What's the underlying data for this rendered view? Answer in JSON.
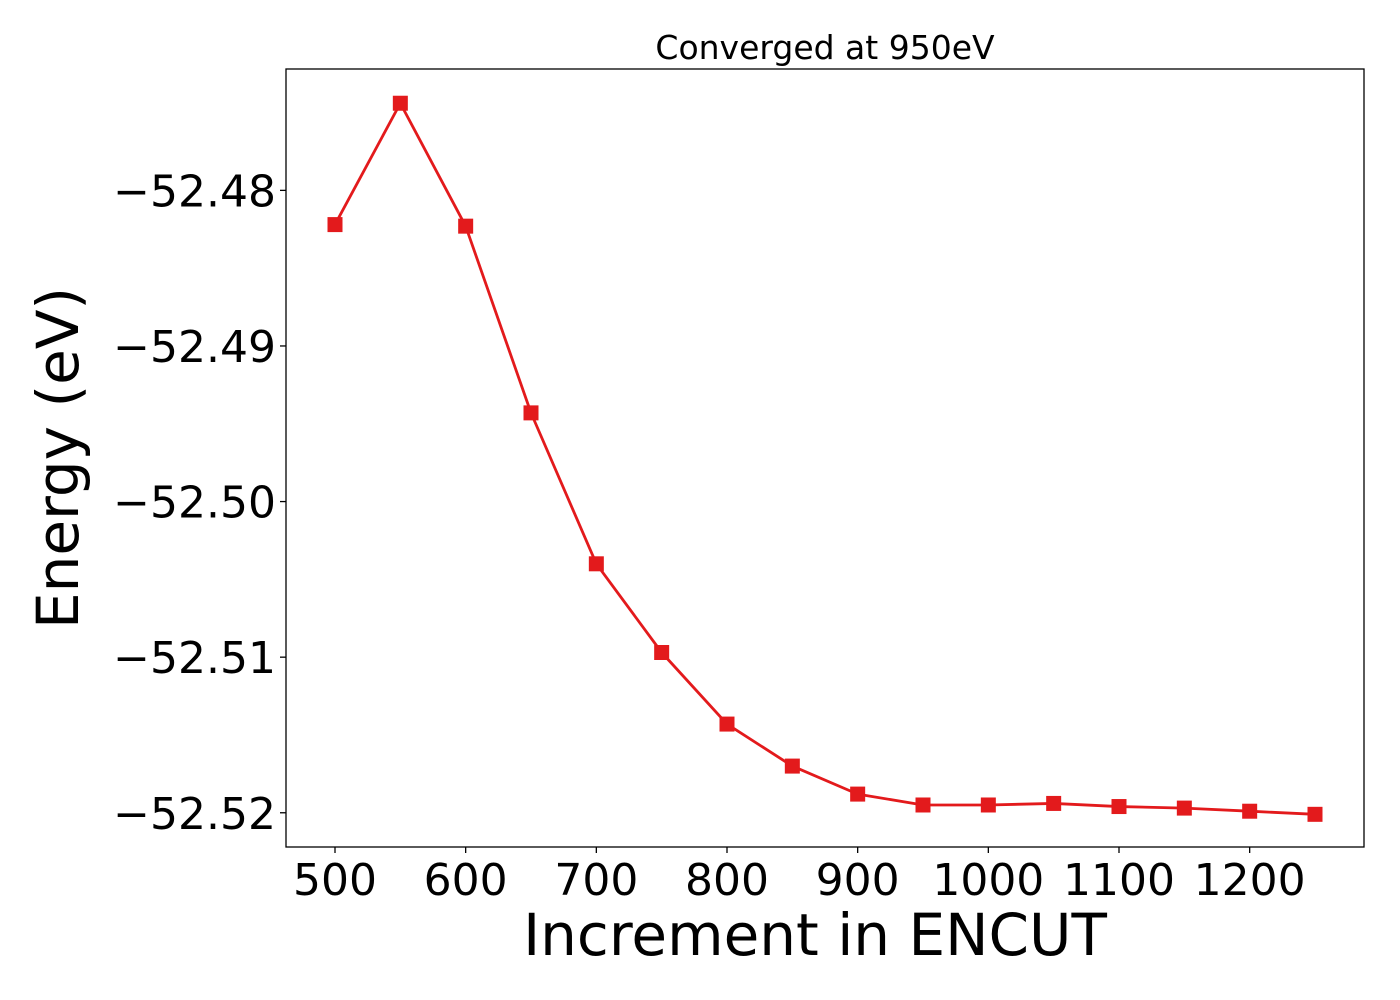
{
  "chart_data": {
    "type": "line",
    "title": "Converged at 950eV",
    "xlabel": "Increment in ENCUT",
    "ylabel": "Energy (eV)",
    "x": [
      500,
      550,
      600,
      650,
      700,
      750,
      800,
      850,
      900,
      950,
      1000,
      1050,
      1100,
      1150,
      1200,
      1250
    ],
    "series": [
      {
        "values": [
          -52.4822,
          -52.4744,
          -52.4823,
          -52.4943,
          -52.504,
          -52.5097,
          -52.5143,
          -52.517,
          -52.5188,
          -52.5195,
          -52.5195,
          -52.5194,
          -52.5196,
          -52.5197,
          -52.5199,
          -52.5201
        ],
        "color": "#e31a1c",
        "marker": "square"
      }
    ],
    "xlim": [
      462.5,
      1287.5
    ],
    "ylim": [
      -52.5222,
      -52.4722
    ],
    "xticks": [
      500,
      600,
      700,
      800,
      900,
      1000,
      1100,
      1200
    ],
    "xtick_labels": [
      "500",
      "600",
      "700",
      "800",
      "900",
      "1000",
      "1100",
      "1200"
    ],
    "yticks": [
      -52.48,
      -52.49,
      -52.5,
      -52.51,
      -52.52
    ],
    "ytick_labels": [
      "−52.48",
      "−52.49",
      "−52.50",
      "−52.51",
      "−52.52"
    ],
    "grid": false,
    "legend": "none"
  }
}
